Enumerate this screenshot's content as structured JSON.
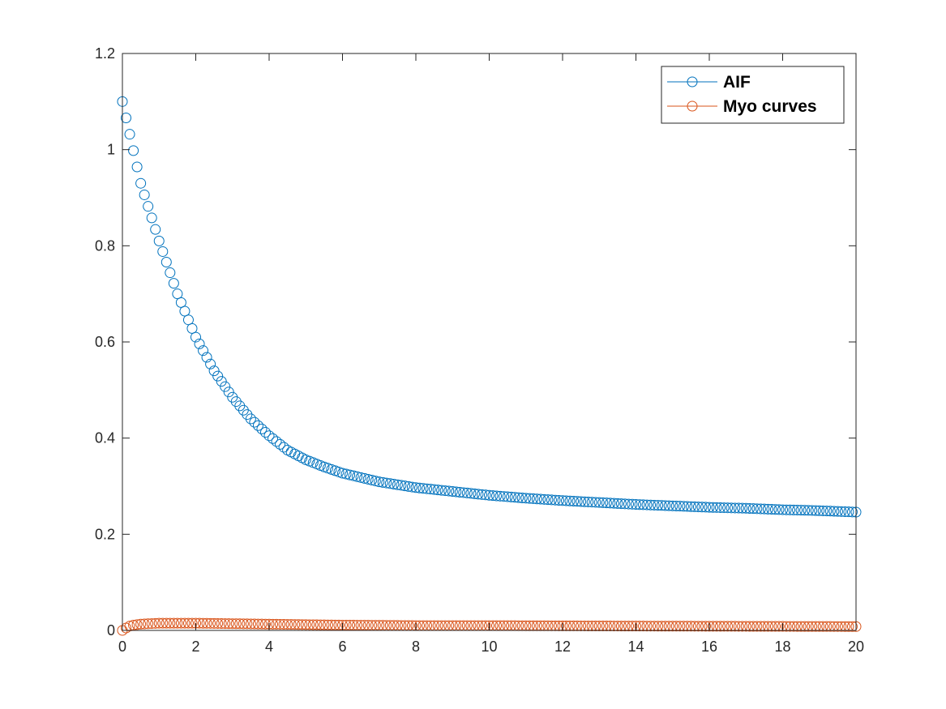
{
  "chart_data": {
    "type": "scatter",
    "title": "",
    "xlabel": "",
    "ylabel": "",
    "xlim": [
      0,
      20
    ],
    "ylim": [
      0,
      1.2
    ],
    "x_ticks": [
      0,
      2,
      4,
      6,
      8,
      10,
      12,
      14,
      16,
      18,
      20
    ],
    "y_ticks": [
      0,
      0.2,
      0.4,
      0.6,
      0.8,
      1,
      1.2
    ],
    "x_tick_labels": [
      "0",
      "2",
      "4",
      "6",
      "8",
      "10",
      "12",
      "14",
      "16",
      "18",
      "20"
    ],
    "y_tick_labels": [
      "0",
      "0.2",
      "0.4",
      "0.6",
      "0.8",
      "1",
      "1.2"
    ],
    "grid": false,
    "legend_position": "top-right",
    "sample_step": 0.1,
    "series": [
      {
        "name": "AIF",
        "color": "#0072BD",
        "marker": "circle-open",
        "points": [
          [
            0,
            1.1
          ],
          [
            0.5,
            0.93
          ],
          [
            1,
            0.81
          ],
          [
            1.5,
            0.7
          ],
          [
            2,
            0.61
          ],
          [
            2.5,
            0.54
          ],
          [
            3,
            0.485
          ],
          [
            3.5,
            0.44
          ],
          [
            4,
            0.405
          ],
          [
            4.5,
            0.375
          ],
          [
            5,
            0.355
          ],
          [
            5.5,
            0.34
          ],
          [
            6,
            0.327
          ],
          [
            7,
            0.309
          ],
          [
            8,
            0.297
          ],
          [
            9,
            0.289
          ],
          [
            10,
            0.281
          ],
          [
            11,
            0.275
          ],
          [
            12,
            0.27
          ],
          [
            13,
            0.266
          ],
          [
            14,
            0.262
          ],
          [
            15,
            0.259
          ],
          [
            16,
            0.256
          ],
          [
            17,
            0.254
          ],
          [
            18,
            0.251
          ],
          [
            19,
            0.249
          ],
          [
            20,
            0.246
          ]
        ]
      },
      {
        "name": "Myo curves",
        "color": "#D95319",
        "marker": "circle-open",
        "points": [
          [
            0,
            0.0
          ],
          [
            0.1,
            0.005
          ],
          [
            0.2,
            0.009
          ],
          [
            0.3,
            0.011
          ],
          [
            0.5,
            0.013
          ],
          [
            1,
            0.015
          ],
          [
            2,
            0.015
          ],
          [
            3,
            0.014
          ],
          [
            4,
            0.013
          ],
          [
            5,
            0.012
          ],
          [
            6,
            0.011
          ],
          [
            8,
            0.01
          ],
          [
            10,
            0.01
          ],
          [
            14,
            0.009
          ],
          [
            20,
            0.008
          ]
        ]
      }
    ]
  },
  "legend": {
    "items": [
      "AIF",
      "Myo curves"
    ]
  },
  "colors": {
    "axis": "#262626",
    "background": "#ffffff"
  }
}
